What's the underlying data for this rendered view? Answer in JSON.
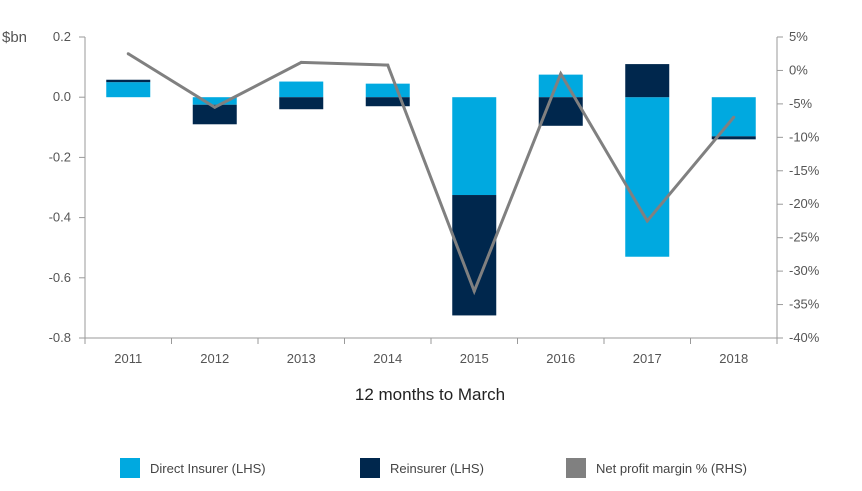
{
  "chart_data": {
    "type": "bar+line",
    "categories": [
      "2011",
      "2012",
      "2013",
      "2014",
      "2015",
      "2016",
      "2017",
      "2018"
    ],
    "series": [
      {
        "name": "Direct Insurer (LHS)",
        "type": "bar",
        "axis": "left",
        "color": "#00a9e0",
        "values": [
          0.05,
          -0.025,
          0.052,
          0.045,
          -0.325,
          0.075,
          -0.53,
          -0.13
        ]
      },
      {
        "name": "Reinsurer (LHS)",
        "type": "bar",
        "axis": "left",
        "color": "#00274d",
        "values": [
          0.008,
          -0.065,
          -0.04,
          -0.03,
          -0.4,
          -0.095,
          0.11,
          -0.01
        ]
      },
      {
        "name": "Net profit margin % (RHS)",
        "type": "line",
        "axis": "right",
        "color": "#808080",
        "values": [
          2.5,
          -5.5,
          1.2,
          0.8,
          -33,
          -0.5,
          -22.5,
          -7
        ]
      }
    ],
    "ylabel": "$bn",
    "xlabel": "12 months to March",
    "yticks_left": [
      "0.2",
      "0.0",
      "-0.2",
      "-0.4",
      "-0.6",
      "-0.8"
    ],
    "yticks_right": [
      "5%",
      "0%",
      "-5%",
      "-10%",
      "-15%",
      "-20%",
      "-25%",
      "-30%",
      "-35%",
      "-40%"
    ],
    "ylim_left": [
      -0.8,
      0.2
    ],
    "ylim_right": [
      -40,
      5
    ],
    "grid": false,
    "legend_position": "bottom"
  },
  "legend": [
    {
      "label": "Direct Insurer (LHS)",
      "color": "#00a9e0"
    },
    {
      "label": "Reinsurer (LHS)",
      "color": "#00274d"
    },
    {
      "label": "Net profit margin % (RHS)",
      "color": "#808080"
    }
  ]
}
